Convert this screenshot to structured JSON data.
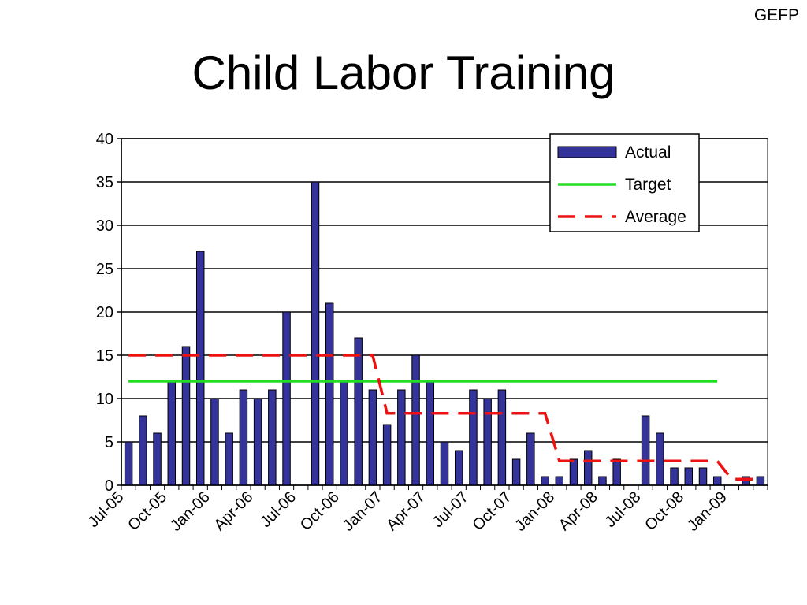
{
  "corner_label": "GEFP",
  "chart_data": {
    "type": "bar",
    "title": "Child Labor Training",
    "xlabel": "",
    "ylabel": "",
    "ylim": [
      0,
      40
    ],
    "yticks": [
      0,
      5,
      10,
      15,
      20,
      25,
      30,
      35,
      40
    ],
    "grid": true,
    "legend_position": "top-right",
    "x_tick_labels": [
      "Jul-05",
      "Oct-05",
      "Jan-06",
      "Apr-06",
      "Jul-06",
      "Oct-06",
      "Jan-07",
      "Apr-07",
      "Jul-07",
      "Oct-07",
      "Jan-08",
      "Apr-08",
      "Jul-08",
      "Oct-08",
      "Jan-09"
    ],
    "categories": [
      "Jul-05",
      "Aug-05",
      "Sep-05",
      "Oct-05",
      "Nov-05",
      "Dec-05",
      "Jan-06",
      "Feb-06",
      "Mar-06",
      "Apr-06",
      "May-06",
      "Jun-06",
      "Jul-06",
      "Aug-06",
      "Sep-06",
      "Oct-06",
      "Nov-06",
      "Dec-06",
      "Jan-07",
      "Feb-07",
      "Mar-07",
      "Apr-07",
      "May-07",
      "Jun-07",
      "Jul-07",
      "Aug-07",
      "Sep-07",
      "Oct-07",
      "Nov-07",
      "Dec-07",
      "Jan-08",
      "Feb-08",
      "Mar-08",
      "Apr-08",
      "May-08",
      "Jun-08",
      "Jul-08",
      "Aug-08",
      "Sep-08",
      "Oct-08",
      "Nov-08",
      "Dec-08",
      "Jan-09",
      "Feb-09",
      "Mar-09"
    ],
    "series": [
      {
        "name": "Actual",
        "type": "bar",
        "color": "#333399",
        "values": [
          5,
          8,
          6,
          12,
          16,
          27,
          10,
          6,
          11,
          10,
          11,
          20,
          0,
          35,
          21,
          12,
          17,
          11,
          7,
          11,
          15,
          12,
          5,
          4,
          11,
          10,
          11,
          3,
          6,
          1,
          1,
          3,
          4,
          1,
          3,
          0,
          8,
          6,
          2,
          2,
          2,
          1,
          0,
          1,
          1
        ]
      },
      {
        "name": "Target",
        "type": "line",
        "color": "#22dd22",
        "values": [
          12,
          12,
          12,
          12,
          12,
          12,
          12,
          12,
          12,
          12,
          12,
          12,
          12,
          12,
          12,
          12,
          12,
          12,
          12,
          12,
          12,
          12,
          12,
          12,
          12,
          12,
          12,
          12,
          12,
          12,
          12,
          12,
          12,
          12,
          12,
          12,
          12,
          12,
          12,
          12,
          12,
          12,
          null,
          null,
          null
        ]
      },
      {
        "name": "Average",
        "type": "line",
        "dashed": true,
        "color": "#ee1111",
        "values": [
          15,
          15,
          15,
          15,
          15,
          15,
          15,
          15,
          15,
          15,
          15,
          15,
          15,
          15,
          15,
          15,
          15,
          15,
          8.3,
          8.3,
          8.3,
          8.3,
          8.3,
          8.3,
          8.3,
          8.3,
          8.3,
          8.3,
          8.3,
          8.3,
          2.8,
          2.8,
          2.8,
          2.8,
          2.8,
          2.8,
          2.8,
          2.8,
          2.8,
          2.8,
          2.8,
          2.8,
          0.7,
          0.7,
          0.7
        ]
      }
    ]
  }
}
